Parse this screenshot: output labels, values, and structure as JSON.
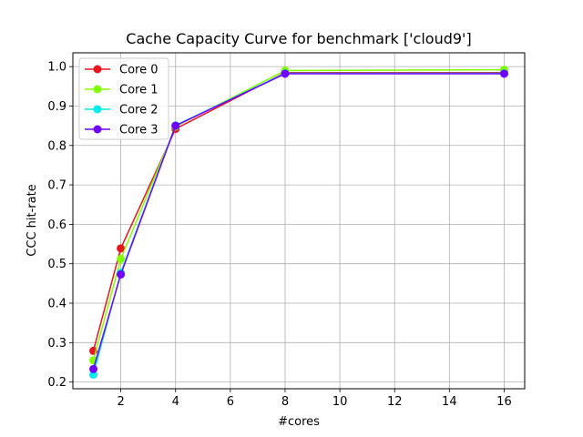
{
  "chart_data": {
    "type": "line",
    "title": "Cache Capacity Curve for benchmark ['cloud9']",
    "xlabel": "#cores",
    "ylabel": "CCC hit-rate",
    "xlim": [
      0.25,
      16.75
    ],
    "ylim": [
      0.183,
      1.035
    ],
    "xticks": [
      2,
      4,
      6,
      8,
      10,
      12,
      14,
      16
    ],
    "yticks": [
      0.2,
      0.3,
      0.4,
      0.5,
      0.6,
      0.7,
      0.8,
      0.9,
      1.0
    ],
    "ytick_labels": [
      "0.2",
      "0.3",
      "0.4",
      "0.5",
      "0.6",
      "0.7",
      "0.8",
      "0.9",
      "1.0"
    ],
    "grid": true,
    "legend_position": "upper-left",
    "x": [
      1,
      2,
      4,
      8,
      16
    ],
    "series": [
      {
        "name": "Core 0",
        "color": "#e8141e",
        "values": [
          0.279,
          0.539,
          0.842,
          0.985,
          0.985
        ]
      },
      {
        "name": "Core 1",
        "color": "#80ff00",
        "values": [
          0.255,
          0.512,
          0.848,
          0.99,
          0.992
        ]
      },
      {
        "name": "Core 2",
        "color": "#00ecec",
        "values": [
          0.219,
          0.477,
          0.851,
          0.983,
          0.983
        ]
      },
      {
        "name": "Core 3",
        "color": "#7000ff",
        "values": [
          0.233,
          0.473,
          0.85,
          0.982,
          0.982
        ]
      }
    ]
  }
}
